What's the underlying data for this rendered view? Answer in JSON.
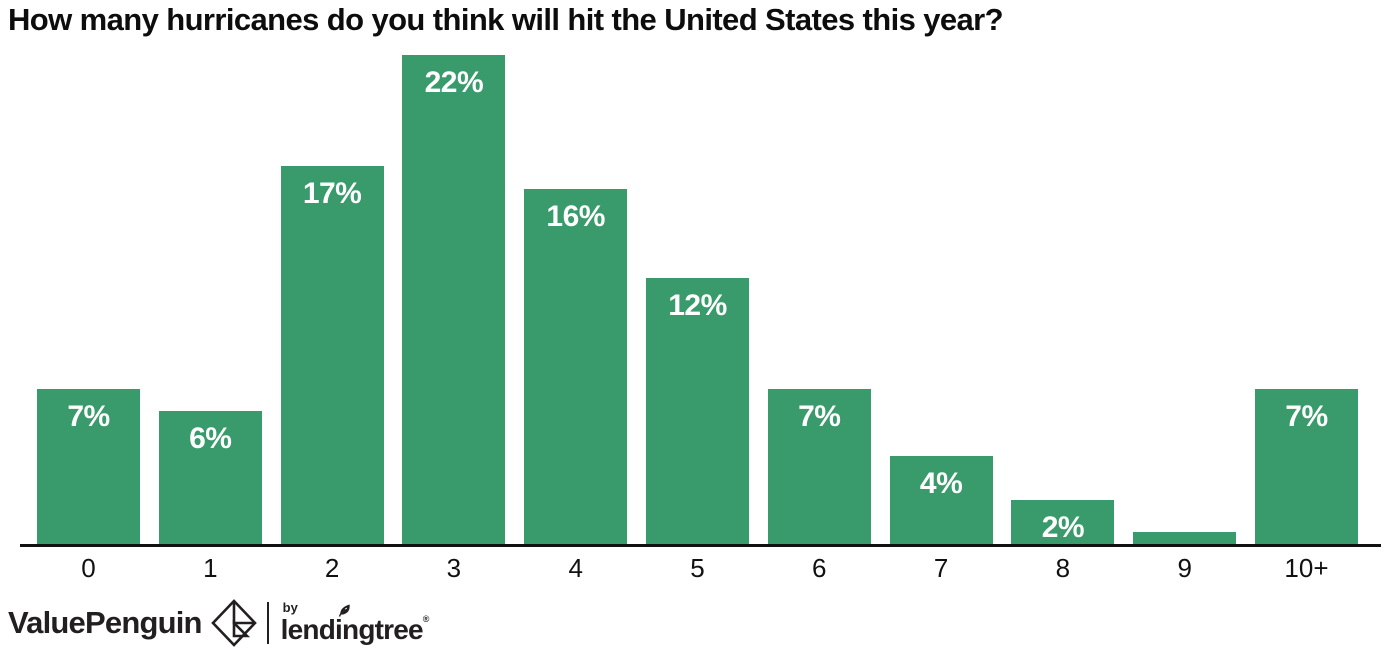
{
  "title": "How many hurricanes do you think will hit the United States this year?",
  "chart_data": {
    "type": "bar",
    "title": "How many hurricanes do you think will hit the United States this year?",
    "categories": [
      "0",
      "1",
      "2",
      "3",
      "4",
      "5",
      "6",
      "7",
      "8",
      "9",
      "10+"
    ],
    "values": [
      7,
      6,
      17,
      22,
      16,
      12,
      7,
      4,
      2,
      0.6,
      7
    ],
    "bar_labels": [
      "7%",
      "6%",
      "17%",
      "22%",
      "16%",
      "12%",
      "7%",
      "4%",
      "2%",
      "",
      "7%"
    ],
    "xlabel": "",
    "ylabel": "",
    "ylim": [
      0,
      22.4
    ],
    "grid": false,
    "legend": false,
    "bar_color": "#399a6b",
    "bar_label_color": "#ffffff",
    "axis_color": "#111111"
  },
  "branding": {
    "valuepenguin": "ValuePenguin",
    "by": "by",
    "lendingtree": "lendingtree",
    "registered_mark": "®"
  },
  "icons": {
    "valuepenguin_mark": "origami-penguin-diamond-icon",
    "lendingtree_leaf": "leaf-icon"
  },
  "colors": {
    "background": "#ffffff",
    "title_text": "#0d0d0d",
    "tick_text": "#111111",
    "logo_text": "#231f20"
  }
}
